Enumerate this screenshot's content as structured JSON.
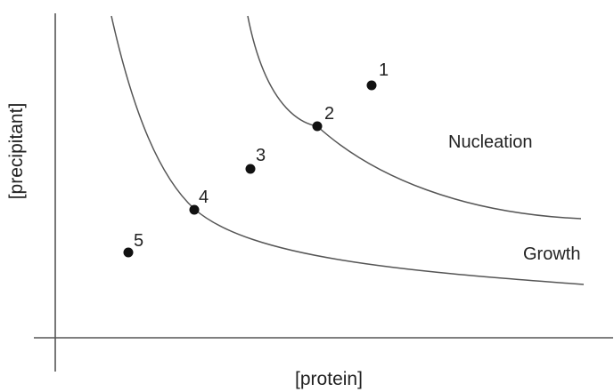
{
  "axes": {
    "x_label": "[protein]",
    "y_label": "[precipitant]"
  },
  "regions": {
    "upper": "Nucleation",
    "lower": "Growth"
  },
  "points": [
    {
      "label": "1"
    },
    {
      "label": "2"
    },
    {
      "label": "3"
    },
    {
      "label": "4"
    },
    {
      "label": "5"
    }
  ],
  "colors": {
    "line": "#555555",
    "point": "#111111",
    "text": "#222222"
  }
}
